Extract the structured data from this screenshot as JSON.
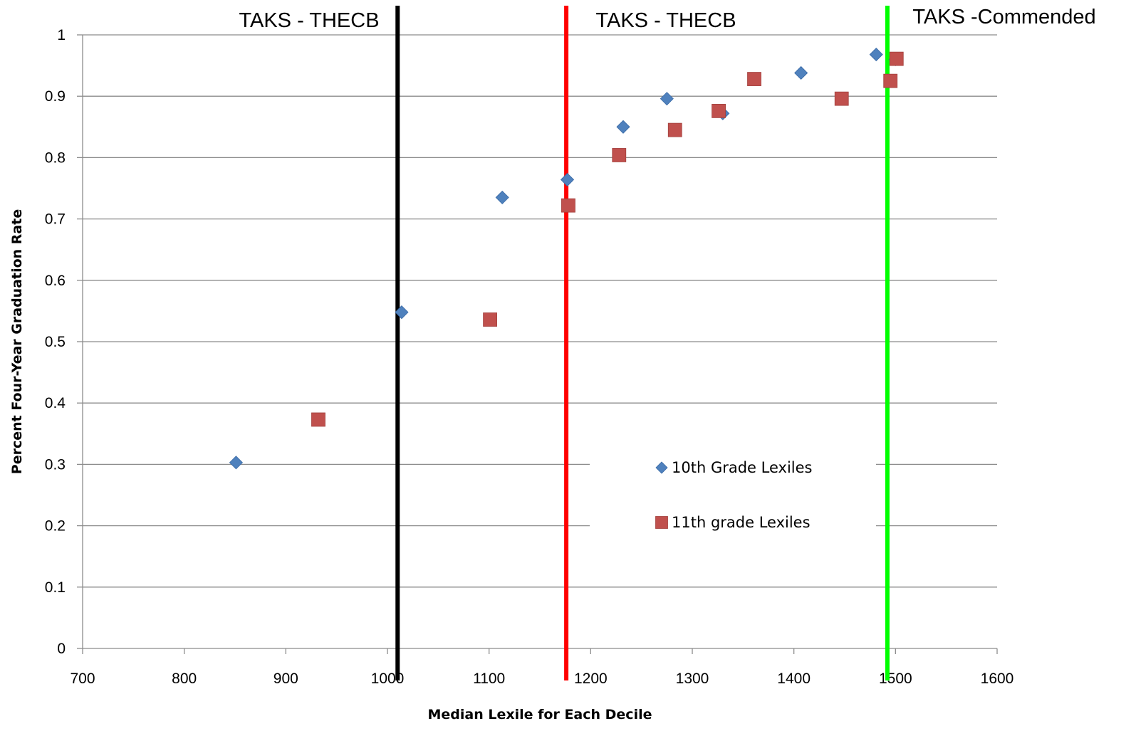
{
  "chart_data": {
    "type": "scatter",
    "title": "",
    "xlabel": "Median Lexile for Each Decile",
    "ylabel": "Percent Four-Year Graduation Rate",
    "xlim": [
      700,
      1600
    ],
    "ylim": [
      0,
      1
    ],
    "x_ticks": [
      "700",
      "800",
      "900",
      "1000",
      "1100",
      "1200",
      "1300",
      "1400",
      "1500",
      "1600"
    ],
    "y_ticks": [
      "0",
      "0.1",
      "0.2",
      "0.3",
      "0.4",
      "0.5",
      "0.6",
      "0.7",
      "0.8",
      "0.9",
      "1"
    ],
    "grid": "horizontal",
    "legend_position": "lower-right-inside",
    "series": [
      {
        "name": "10th Grade Lexiles",
        "marker": "diamond",
        "color": "#4F81BD",
        "points": [
          {
            "x": 851,
            "y": 0.303
          },
          {
            "x": 1014,
            "y": 0.548
          },
          {
            "x": 1113,
            "y": 0.735
          },
          {
            "x": 1177,
            "y": 0.764
          },
          {
            "x": 1232,
            "y": 0.85
          },
          {
            "x": 1275,
            "y": 0.896
          },
          {
            "x": 1330,
            "y": 0.872
          },
          {
            "x": 1407,
            "y": 0.938
          },
          {
            "x": 1481,
            "y": 0.968
          },
          {
            "x": 1500,
            "y": 0.96
          }
        ]
      },
      {
        "name": "11th grade Lexiles",
        "marker": "square",
        "color": "#C0504D",
        "points": [
          {
            "x": 932,
            "y": 0.373
          },
          {
            "x": 1101,
            "y": 0.536
          },
          {
            "x": 1178,
            "y": 0.722
          },
          {
            "x": 1228,
            "y": 0.804
          },
          {
            "x": 1283,
            "y": 0.845
          },
          {
            "x": 1326,
            "y": 0.876
          },
          {
            "x": 1361,
            "y": 0.928
          },
          {
            "x": 1447,
            "y": 0.896
          },
          {
            "x": 1495,
            "y": 0.925
          },
          {
            "x": 1501,
            "y": 0.961
          }
        ]
      }
    ],
    "reference_lines": [
      {
        "x": 1010,
        "color": "#000000",
        "label": "TAKS - THECB"
      },
      {
        "x": 1176,
        "color": "#FF0000",
        "label": "TAKS - THECB"
      },
      {
        "x": 1492,
        "color": "#00FF00",
        "label": "TAKS -Commended"
      }
    ]
  }
}
